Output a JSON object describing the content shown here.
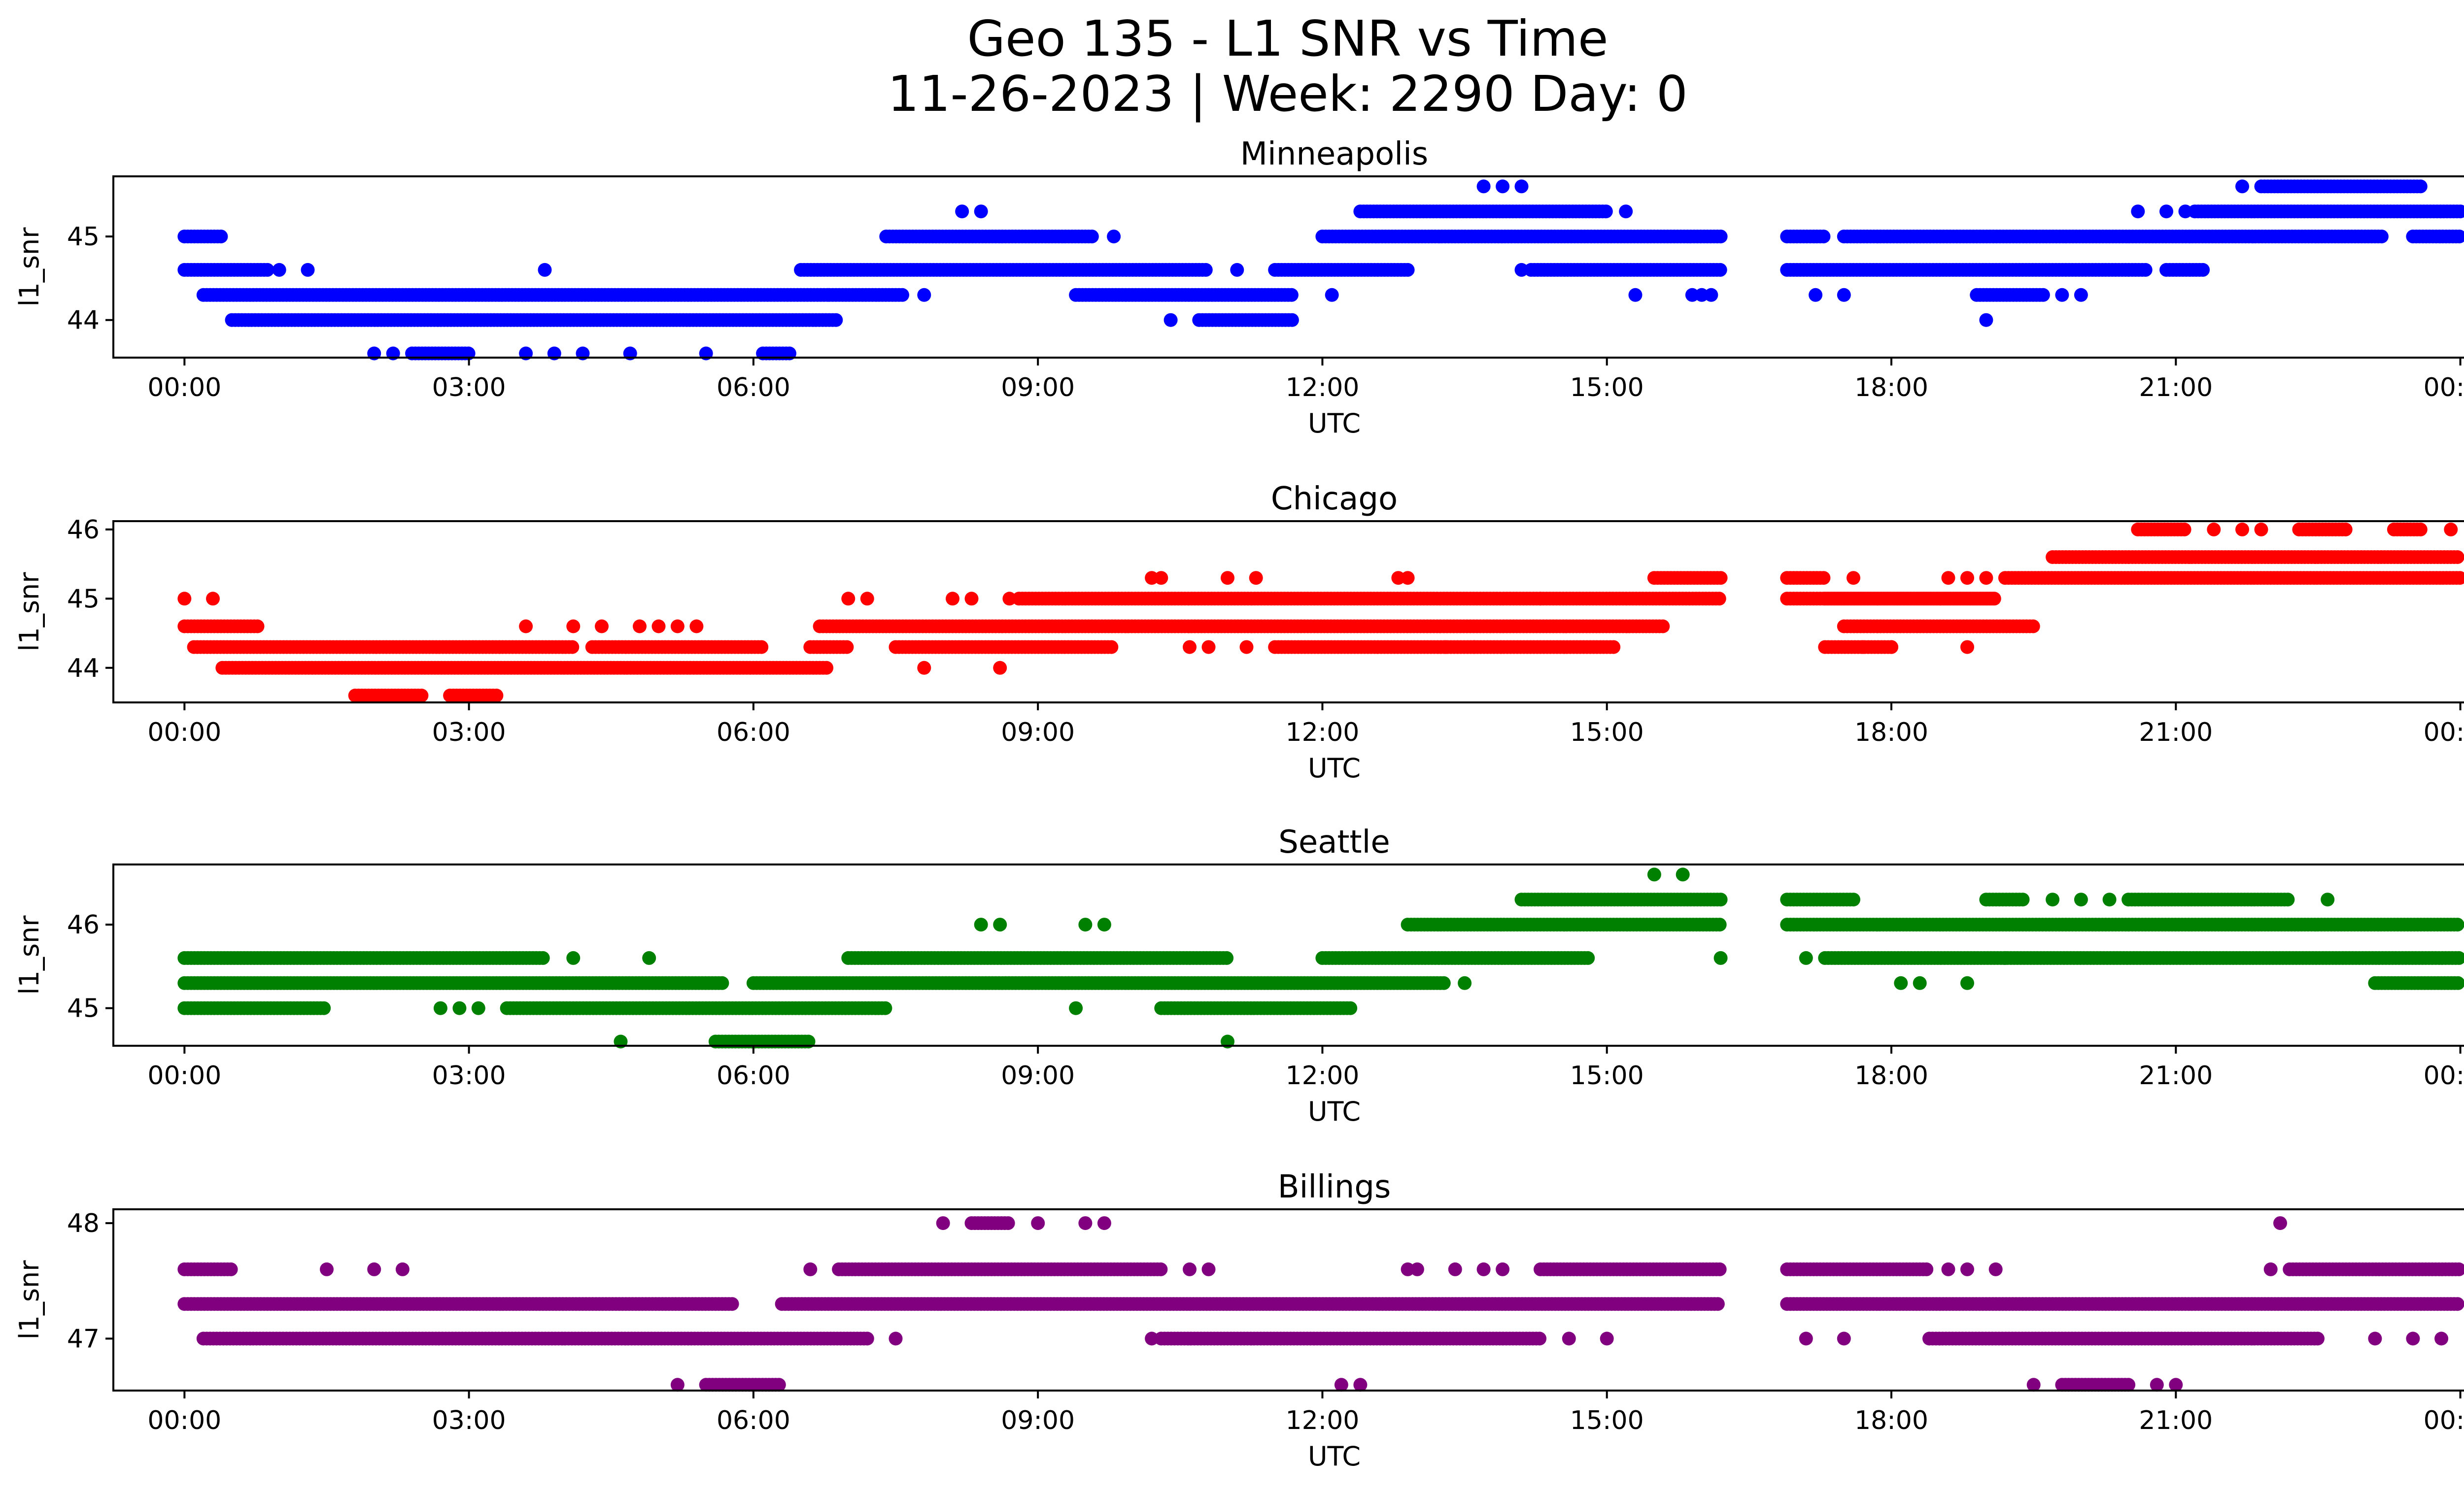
{
  "figure": {
    "title_line1": "Geo 135 - L1 SNR vs Time",
    "title_line2": "11-26-2023 | Week: 2290 Day: 0"
  },
  "chart_data": [
    {
      "type": "scatter",
      "title": "Minneapolis",
      "xlabel": "UTC",
      "ylabel": "l1_snr",
      "color": "#0000ff",
      "xlim": [
        -0.75,
        25.0
      ],
      "ylim": [
        43.55,
        45.72
      ],
      "xticks": [
        "00:00",
        "03:00",
        "06:00",
        "09:00",
        "12:00",
        "15:00",
        "18:00",
        "21:00",
        "00:00"
      ],
      "yticks": [
        44,
        45
      ],
      "runs": [
        {
          "y": 45.0,
          "segments": [
            [
              0.0,
              0.4
            ],
            [
              7.4,
              9.6
            ],
            [
              12.0,
              16.2
            ],
            [
              16.9,
              17.3
            ],
            [
              17.5,
              23.2
            ],
            [
              23.5,
              24.0
            ]
          ],
          "points": [
            9.8
          ]
        },
        {
          "y": 44.6,
          "segments": [
            [
              0.0,
              0.9
            ],
            [
              6.5,
              10.8
            ],
            [
              11.5,
              12.9
            ],
            [
              14.2,
              16.2
            ],
            [
              16.9,
              20.7
            ],
            [
              20.9,
              21.3
            ]
          ],
          "points": [
            1.0,
            1.3,
            3.8,
            11.1,
            14.1
          ]
        },
        {
          "y": 44.3,
          "segments": [
            [
              0.2,
              6.8
            ],
            [
              6.8,
              7.6
            ],
            [
              9.4,
              11.7
            ],
            [
              18.9,
              19.6
            ]
          ],
          "points": [
            7.8,
            12.1,
            15.3,
            15.9,
            16.0,
            16.1,
            17.2,
            17.5,
            19.8,
            20.0
          ]
        },
        {
          "y": 44.0,
          "segments": [
            [
              0.5,
              6.9
            ],
            [
              10.7,
              11.7
            ]
          ],
          "points": [
            10.4,
            19.0
          ]
        },
        {
          "y": 43.6,
          "segments": [
            [
              2.4,
              3.0
            ],
            [
              6.1,
              6.4
            ]
          ],
          "points": [
            2.0,
            2.2,
            3.6,
            3.9,
            4.2,
            4.7,
            5.5
          ]
        },
        {
          "y": 45.3,
          "segments": [
            [
              12.4,
              15.0
            ],
            [
              21.2,
              24.0
            ]
          ],
          "points": [
            8.2,
            8.4,
            15.2,
            20.6,
            20.9,
            21.1
          ]
        },
        {
          "y": 45.6,
          "segments": [
            [
              21.9,
              23.6
            ]
          ],
          "points": [
            13.7,
            13.9,
            14.1,
            21.7
          ]
        }
      ]
    },
    {
      "type": "scatter",
      "title": "Chicago",
      "xlabel": "UTC",
      "ylabel": "l1_snr",
      "color": "#ff0000",
      "xlim": [
        -0.75,
        25.0
      ],
      "ylim": [
        43.5,
        46.12
      ],
      "xticks": [
        "00:00",
        "03:00",
        "06:00",
        "09:00",
        "12:00",
        "15:00",
        "18:00",
        "21:00",
        "00:00"
      ],
      "yticks": [
        44,
        45,
        46
      ],
      "runs": [
        {
          "y": 46.0,
          "segments": [
            [
              20.6,
              21.1
            ],
            [
              22.3,
              22.8
            ],
            [
              23.3,
              23.6
            ]
          ],
          "points": [
            21.4,
            21.7,
            21.9,
            23.9
          ]
        },
        {
          "y": 45.6,
          "segments": [
            [
              19.7,
              24.0
            ]
          ],
          "points": []
        },
        {
          "y": 45.3,
          "segments": [
            [
              15.5,
              16.2
            ],
            [
              19.2,
              24.0
            ],
            [
              16.9,
              17.3
            ]
          ],
          "points": [
            10.2,
            10.3,
            11.0,
            11.3,
            12.8,
            12.9,
            17.6,
            18.6,
            18.8,
            19.0
          ]
        },
        {
          "y": 45.0,
          "segments": [
            [
              8.8,
              16.2
            ],
            [
              16.9,
              19.1
            ],
            [
              17.3,
              19.1
            ]
          ],
          "points": [
            0.0,
            0.3,
            7.0,
            7.2,
            8.1,
            8.3,
            8.7,
            14.3
          ]
        },
        {
          "y": 44.6,
          "segments": [
            [
              0.0,
              0.8
            ],
            [
              6.7,
              15.6
            ],
            [
              17.5,
              19.5
            ]
          ],
          "points": [
            3.6,
            4.1,
            4.4,
            4.8,
            5.0,
            5.2,
            5.4
          ]
        },
        {
          "y": 44.3,
          "segments": [
            [
              0.1,
              4.1
            ],
            [
              4.3,
              6.1
            ],
            [
              6.6,
              7.0
            ],
            [
              7.5,
              9.8
            ],
            [
              11.5,
              15.1
            ],
            [
              17.3,
              18.0
            ]
          ],
          "points": [
            10.6,
            10.8,
            11.2,
            13.3,
            13.6,
            17.7,
            18.0,
            18.8
          ]
        },
        {
          "y": 44.0,
          "segments": [
            [
              0.4,
              6.8
            ]
          ],
          "points": [
            7.8,
            8.6
          ]
        },
        {
          "y": 43.6,
          "segments": [
            [
              1.8,
              2.5
            ],
            [
              2.8,
              3.3
            ]
          ],
          "points": []
        }
      ]
    },
    {
      "type": "scatter",
      "title": "Seattle",
      "xlabel": "UTC",
      "ylabel": "l1_snr",
      "color": "#008000",
      "xlim": [
        -0.75,
        25.0
      ],
      "ylim": [
        44.55,
        46.72
      ],
      "xticks": [
        "00:00",
        "03:00",
        "06:00",
        "09:00",
        "12:00",
        "15:00",
        "18:00",
        "21:00",
        "00:00"
      ],
      "yticks": [
        45,
        46
      ],
      "runs": [
        {
          "y": 46.6,
          "segments": [],
          "points": [
            15.5,
            15.8
          ]
        },
        {
          "y": 46.3,
          "segments": [
            [
              14.1,
              16.2
            ],
            [
              16.9,
              17.6
            ],
            [
              19.0,
              19.4
            ],
            [
              20.5,
              22.2
            ]
          ],
          "points": [
            19.7,
            20.0,
            20.3,
            22.6
          ]
        },
        {
          "y": 46.0,
          "segments": [
            [
              12.9,
              16.2
            ],
            [
              16.9,
              24.0
            ]
          ],
          "points": [
            8.4,
            8.6,
            9.5,
            9.7
          ]
        },
        {
          "y": 45.6,
          "segments": [
            [
              0.0,
              3.8
            ],
            [
              7.0,
              11.0
            ],
            [
              12.0,
              14.8
            ],
            [
              17.3,
              24.0
            ]
          ],
          "points": [
            4.1,
            4.9,
            16.2,
            17.1,
            19.2
          ]
        },
        {
          "y": 45.3,
          "segments": [
            [
              0.0,
              5.7
            ],
            [
              6.0,
              13.3
            ],
            [
              23.1,
              24.0
            ]
          ],
          "points": [
            13.5,
            18.1,
            18.3,
            18.8
          ]
        },
        {
          "y": 45.0,
          "segments": [
            [
              0.0,
              1.5
            ],
            [
              3.4,
              7.4
            ],
            [
              10.3,
              12.3
            ]
          ],
          "points": [
            2.7,
            2.9,
            3.1,
            9.4
          ]
        },
        {
          "y": 44.6,
          "segments": [
            [
              5.6,
              6.6
            ]
          ],
          "points": [
            4.6,
            11.0
          ]
        }
      ]
    },
    {
      "type": "scatter",
      "title": "Billings",
      "xlabel": "UTC",
      "ylabel": "l1_snr",
      "color": "#800080",
      "xlim": [
        -0.75,
        25.0
      ],
      "ylim": [
        46.55,
        48.12
      ],
      "xticks": [
        "00:00",
        "03:00",
        "06:00",
        "09:00",
        "12:00",
        "15:00",
        "18:00",
        "21:00",
        "00:00"
      ],
      "yticks": [
        47,
        48
      ],
      "runs": [
        {
          "y": 48.0,
          "segments": [
            [
              8.3,
              8.7
            ]
          ],
          "points": [
            8.0,
            9.0,
            9.5,
            9.7,
            22.1
          ]
        },
        {
          "y": 47.6,
          "segments": [
            [
              0.0,
              0.5
            ],
            [
              6.9,
              10.3
            ],
            [
              14.3,
              16.2
            ],
            [
              16.9,
              18.4
            ],
            [
              22.2,
              24.0
            ]
          ],
          "points": [
            1.5,
            2.0,
            2.3,
            6.6,
            10.6,
            10.8,
            12.9,
            13.0,
            13.4,
            13.7,
            13.9,
            18.6,
            18.8,
            19.1,
            22.0
          ]
        },
        {
          "y": 47.3,
          "segments": [
            [
              0.0,
              5.8
            ],
            [
              6.3,
              16.2
            ],
            [
              16.9,
              24.0
            ]
          ],
          "points": []
        },
        {
          "y": 47.0,
          "segments": [
            [
              0.2,
              7.2
            ],
            [
              10.3,
              14.3
            ],
            [
              18.4,
              22.5
            ]
          ],
          "points": [
            7.5,
            10.2,
            14.6,
            15.0,
            17.1,
            17.5,
            23.1,
            23.5,
            23.8
          ]
        },
        {
          "y": 46.6,
          "segments": [
            [
              5.5,
              6.3
            ],
            [
              19.8,
              20.5
            ]
          ],
          "points": [
            5.2,
            12.2,
            12.4,
            19.5,
            20.8,
            21.0
          ]
        }
      ]
    }
  ]
}
